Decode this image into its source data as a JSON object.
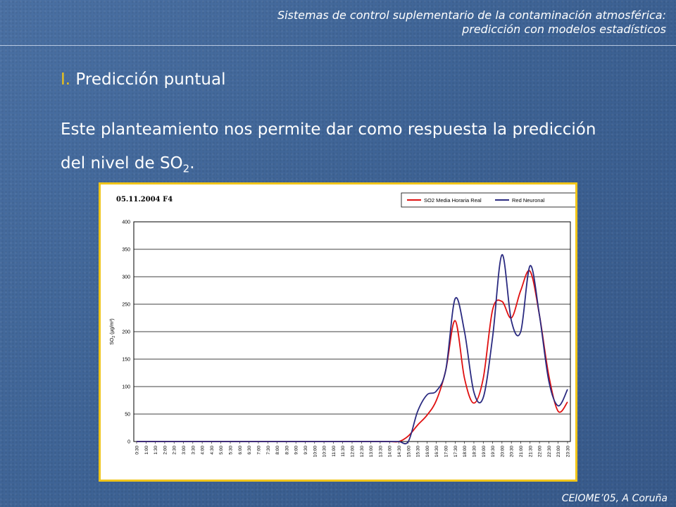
{
  "header": {
    "line1": "Sistemas de control suplementario de la contaminación atmosférica:",
    "line2": "predicción con modelos estadísticos"
  },
  "section": {
    "number": "I.",
    "title": "Predicción puntual"
  },
  "body": {
    "text": "Este planteamiento nos permite dar como respuesta la predicción del nivel de SO",
    "subscript": "2",
    "suffix": "."
  },
  "footer": {
    "text": "CEIOME’05, A Coruña"
  },
  "chart_data": {
    "type": "line",
    "title": "05.11.2004 F4",
    "ylabel": "SO",
    "ylabel_subscript": "2",
    "ylabel_unit": "(µg/m³)",
    "ylim": [
      0,
      400
    ],
    "yticks": [
      0,
      50,
      100,
      150,
      200,
      250,
      300,
      350,
      400
    ],
    "grid": true,
    "legend_position": "top-right",
    "x": [
      "0:30",
      "1:00",
      "1:30",
      "2:00",
      "2:30",
      "3:00",
      "3:30",
      "4:00",
      "4:30",
      "5:00",
      "5:30",
      "6:00",
      "6:30",
      "7:00",
      "7:30",
      "8:00",
      "8:30",
      "9:00",
      "9:30",
      "10:00",
      "10:30",
      "11:00",
      "11:30",
      "12:00",
      "12:30",
      "13:00",
      "13:30",
      "14:00",
      "14:30",
      "15:00",
      "15:30",
      "16:00",
      "16:30",
      "17:00",
      "17:30",
      "18:00",
      "18:30",
      "19:00",
      "19:30",
      "20:00",
      "20:30",
      "21:00",
      "21:30",
      "22:00",
      "22:30",
      "23:00",
      "23:30"
    ],
    "series": [
      {
        "name": "SO2 Media Horaria Real",
        "color": "#e01010",
        "values": [
          0,
          0,
          0,
          0,
          0,
          0,
          0,
          0,
          0,
          0,
          0,
          0,
          0,
          0,
          0,
          0,
          0,
          0,
          0,
          0,
          0,
          0,
          0,
          0,
          0,
          0,
          0,
          0,
          0,
          10,
          30,
          48,
          75,
          130,
          220,
          115,
          70,
          115,
          240,
          255,
          225,
          275,
          310,
          230,
          120,
          55,
          72
        ]
      },
      {
        "name": "Red Neuronal",
        "color": "#2a2a80",
        "values": [
          0,
          0,
          0,
          0,
          0,
          0,
          0,
          0,
          0,
          0,
          0,
          0,
          0,
          0,
          0,
          0,
          0,
          0,
          0,
          0,
          0,
          0,
          0,
          0,
          0,
          0,
          0,
          0,
          0,
          0,
          55,
          85,
          92,
          130,
          260,
          200,
          90,
          80,
          190,
          340,
          220,
          200,
          320,
          230,
          110,
          65,
          95
        ]
      }
    ]
  }
}
